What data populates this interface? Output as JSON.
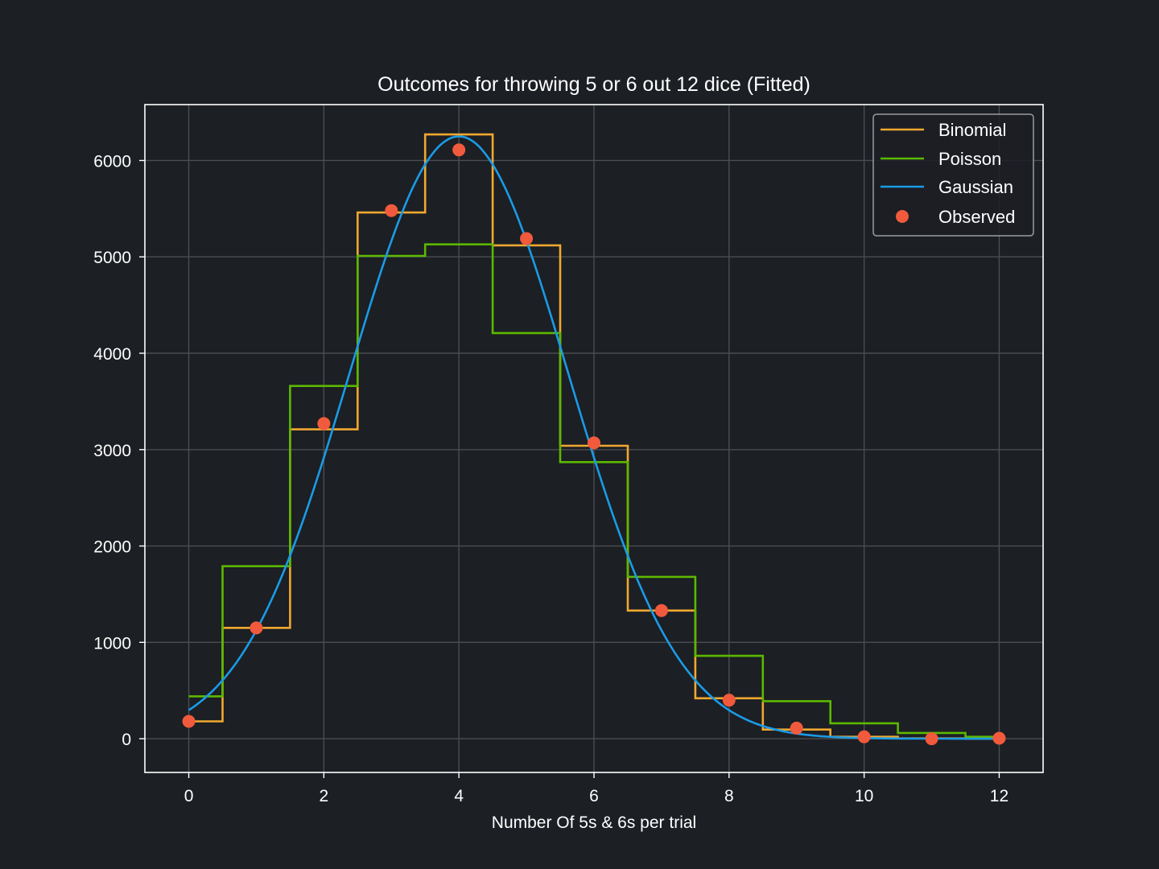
{
  "chart_data": {
    "type": "line",
    "title": "Outcomes for throwing 5 or 6 out 12 dice (Fitted)",
    "xlabel": "Number Of 5s & 6s per trial",
    "ylabel": "",
    "xlim": [
      -0.65,
      12.65
    ],
    "ylim": [
      -350,
      6580
    ],
    "xticks": [
      0,
      2,
      4,
      6,
      8,
      10,
      12
    ],
    "yticks": [
      0,
      1000,
      2000,
      3000,
      4000,
      5000,
      6000
    ],
    "grid": true,
    "legend_position": "top-right",
    "x": [
      0,
      1,
      2,
      3,
      4,
      5,
      6,
      7,
      8,
      9,
      10,
      11,
      12
    ],
    "series": [
      {
        "name": "Binomial",
        "style": "step",
        "color": "#f0a830",
        "values": [
          180,
          1150,
          3210,
          5460,
          6270,
          5120,
          3040,
          1330,
          420,
          95,
          20,
          3,
          0
        ]
      },
      {
        "name": "Poisson",
        "style": "step",
        "color": "#5cb800",
        "values": [
          440,
          1790,
          3660,
          5010,
          5130,
          4210,
          2870,
          1680,
          860,
          390,
          160,
          60,
          20
        ]
      },
      {
        "name": "Gaussian",
        "style": "curve",
        "color": "#1a9be6",
        "mean": 4.0,
        "sigma": 1.62,
        "amplitude": 6250,
        "x_range": [
          0,
          12
        ]
      },
      {
        "name": "Observed",
        "style": "scatter",
        "color": "#f15a3c",
        "values": [
          180,
          1150,
          3270,
          5480,
          6110,
          5190,
          3070,
          1330,
          400,
          110,
          20,
          0,
          5
        ]
      }
    ]
  },
  "colors": {
    "background": "#1c1f24",
    "axes_frame": "#ffffff",
    "grid": "#4a4d52",
    "text": "#ffffff"
  }
}
